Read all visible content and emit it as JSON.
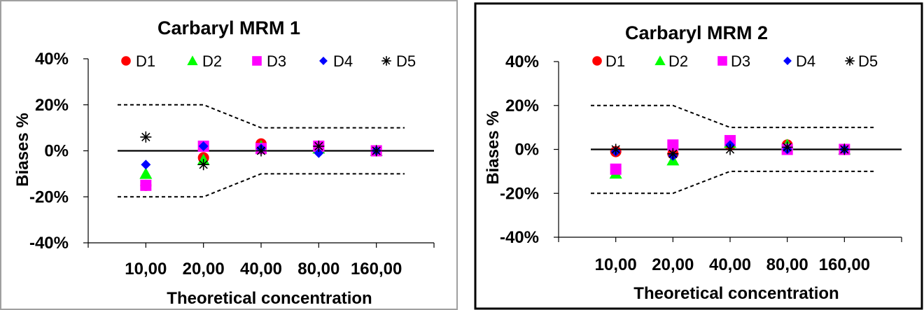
{
  "chart_data": [
    {
      "type": "scatter",
      "title": "Carbaryl MRM 1",
      "xlabel": "Theoretical concentration",
      "ylabel": "Biases %",
      "categories": [
        "10,00",
        "20,00",
        "40,00",
        "80,00",
        "160,00"
      ],
      "ylim": [
        -40,
        40
      ],
      "yticks": [
        "40%",
        "20%",
        "0%",
        "-20%",
        "-40%"
      ],
      "ytick_values": [
        40,
        20,
        0,
        -20,
        -40
      ],
      "legend_position": "top",
      "series": [
        {
          "name": "D1",
          "marker": "circle",
          "color": "#ff0000",
          "values": [
            -15,
            -3,
            3,
            2,
            0
          ]
        },
        {
          "name": "D2",
          "marker": "triangle",
          "color": "#00ff00",
          "values": [
            -10,
            -4,
            2,
            1,
            0
          ]
        },
        {
          "name": "D3",
          "marker": "square",
          "color": "#ff00ff",
          "values": [
            -15,
            2,
            1,
            2,
            0
          ]
        },
        {
          "name": "D4",
          "marker": "diamond",
          "color": "#0000ff",
          "values": [
            -6,
            2,
            1,
            -1,
            0
          ]
        },
        {
          "name": "D5",
          "marker": "star",
          "color": "#000000",
          "values": [
            6,
            -6,
            0,
            2,
            0
          ]
        }
      ],
      "limits": {
        "upper": [
          20,
          20,
          10,
          10,
          10
        ],
        "lower": [
          -20,
          -20,
          -10,
          -10,
          -10
        ]
      }
    },
    {
      "type": "scatter",
      "title": "Carbaryl MRM 2",
      "xlabel": "Theoretical concentration",
      "ylabel": "Biases %",
      "categories": [
        "10,00",
        "20,00",
        "40,00",
        "80,00",
        "160,00"
      ],
      "ylim": [
        -40,
        40
      ],
      "yticks": [
        "40%",
        "20%",
        "0%",
        "-20%",
        "-40%"
      ],
      "ytick_values": [
        40,
        20,
        0,
        -20,
        -40
      ],
      "legend_position": "top",
      "series": [
        {
          "name": "D1",
          "marker": "circle",
          "color": "#ff0000",
          "values": [
            -1,
            -2,
            2,
            2,
            0
          ]
        },
        {
          "name": "D2",
          "marker": "triangle",
          "color": "#00ff00",
          "values": [
            -11,
            -5,
            3,
            2,
            0
          ]
        },
        {
          "name": "D3",
          "marker": "square",
          "color": "#ff00ff",
          "values": [
            -9,
            2,
            4,
            0,
            0
          ]
        },
        {
          "name": "D4",
          "marker": "diamond",
          "color": "#0000ff",
          "values": [
            -1,
            -3,
            2,
            0,
            0
          ]
        },
        {
          "name": "D5",
          "marker": "star",
          "color": "#000000",
          "values": [
            0,
            -2,
            0,
            1,
            0
          ]
        }
      ],
      "limits": {
        "upper": [
          20,
          20,
          10,
          10,
          10
        ],
        "lower": [
          -20,
          -20,
          -10,
          -10,
          -10
        ]
      }
    }
  ]
}
